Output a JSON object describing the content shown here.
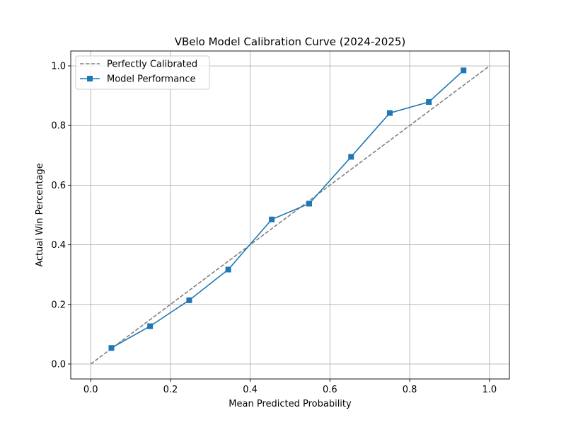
{
  "chart_data": {
    "type": "line",
    "title": "VBelo Model Calibration Curve (2024-2025)",
    "xlabel": "Mean Predicted Probability",
    "ylabel": "Actual Win Percentage",
    "xlim": [
      -0.05,
      1.05
    ],
    "ylim": [
      -0.05,
      1.05
    ],
    "xticks": [
      0.0,
      0.2,
      0.4,
      0.6,
      0.8,
      1.0
    ],
    "yticks": [
      0.0,
      0.2,
      0.4,
      0.6,
      0.8,
      1.0
    ],
    "xtick_labels": [
      "0.0",
      "0.2",
      "0.4",
      "0.6",
      "0.8",
      "1.0"
    ],
    "ytick_labels": [
      "0.0",
      "0.2",
      "0.4",
      "0.6",
      "0.8",
      "1.0"
    ],
    "grid": true,
    "legend_position": "top-left",
    "series": [
      {
        "name": "Perfectly Calibrated",
        "style": "dashed",
        "color": "#808080",
        "x": [
          0.0,
          1.0
        ],
        "y": [
          0.0,
          1.0
        ]
      },
      {
        "name": "Model Performance",
        "style": "solid",
        "marker": "square",
        "color": "#1f77b4",
        "x": [
          0.052,
          0.149,
          0.247,
          0.345,
          0.454,
          0.548,
          0.653,
          0.75,
          0.848,
          0.935
        ],
        "y": [
          0.054,
          0.127,
          0.214,
          0.317,
          0.485,
          0.538,
          0.695,
          0.842,
          0.879,
          0.985
        ]
      }
    ]
  }
}
